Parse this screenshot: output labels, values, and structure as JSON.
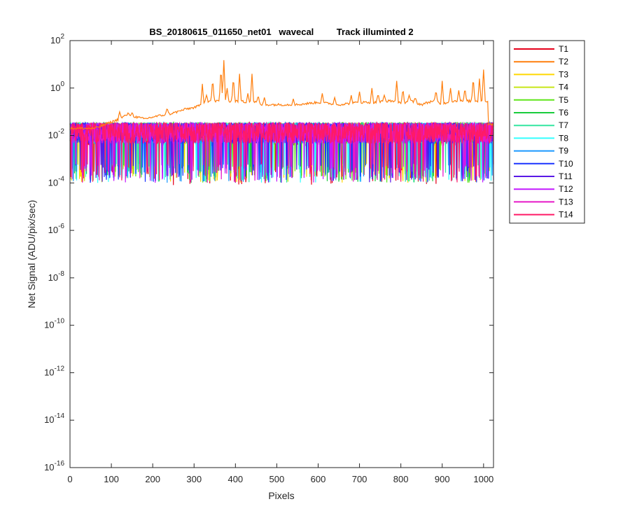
{
  "chart_data": {
    "type": "line",
    "title": "BS_20180615_011650_net01   wavecal         Track illuminted 2",
    "xlabel": "Pixels",
    "ylabel": "Net Signal (ADU/pix/sec)",
    "xlim": [
      0,
      1024
    ],
    "ylim": [
      1e-16,
      100
    ],
    "yscale": "log",
    "grid": false,
    "legend_position": "outside-top-right",
    "x_ticks": [
      0,
      100,
      200,
      300,
      400,
      500,
      600,
      700,
      800,
      900,
      1000
    ],
    "y_ticks": [
      {
        "value": 100,
        "base": "10",
        "exp": "2"
      },
      {
        "value": 1,
        "base": "10",
        "exp": "0"
      },
      {
        "value": 0.01,
        "base": "10",
        "exp": "-2"
      },
      {
        "value": 0.0001,
        "base": "10",
        "exp": "-4"
      },
      {
        "value": 1e-06,
        "base": "10",
        "exp": "-6"
      },
      {
        "value": 1e-08,
        "base": "10",
        "exp": "-8"
      },
      {
        "value": 1e-10,
        "base": "10",
        "exp": "-10"
      },
      {
        "value": 1e-12,
        "base": "10",
        "exp": "-12"
      },
      {
        "value": 1e-14,
        "base": "10",
        "exp": "-14"
      },
      {
        "value": 1e-16,
        "base": "10",
        "exp": "-16"
      }
    ],
    "series": [
      {
        "name": "T1",
        "color": "#e6001a",
        "baseline": 0.008,
        "noise_decades": 1.0
      },
      {
        "name": "T2",
        "color": "#ff7f0e",
        "baseline": 0.2,
        "noise_decades": 0.1,
        "x": [
          0,
          60,
          120,
          140,
          160,
          180,
          200,
          220,
          240,
          260,
          280,
          300,
          320,
          335,
          350,
          365,
          380,
          395,
          410,
          425,
          440,
          460,
          500,
          550,
          600,
          650,
          700,
          750,
          780,
          800,
          820,
          850,
          880,
          900,
          920,
          940,
          960,
          980,
          1000,
          1010,
          1024
        ],
        "y": [
          0.02,
          0.02,
          0.05,
          0.08,
          0.06,
          0.05,
          0.06,
          0.07,
          0.08,
          0.1,
          0.13,
          0.15,
          0.2,
          0.5,
          0.3,
          10,
          0.4,
          2,
          0.3,
          0.25,
          0.3,
          0.2,
          0.2,
          0.2,
          0.25,
          0.2,
          0.25,
          0.25,
          0.5,
          0.2,
          0.3,
          0.2,
          0.3,
          0.2,
          0.3,
          0.3,
          0.4,
          0.5,
          4,
          0.3,
          0.03
        ],
        "peaks": [
          {
            "x": 120,
            "y": 0.1
          },
          {
            "x": 150,
            "y": 0.09
          },
          {
            "x": 235,
            "y": 0.15
          },
          {
            "x": 320,
            "y": 1.5
          },
          {
            "x": 330,
            "y": 0.5
          },
          {
            "x": 345,
            "y": 2.5
          },
          {
            "x": 365,
            "y": 8
          },
          {
            "x": 372,
            "y": 15
          },
          {
            "x": 380,
            "y": 1.0
          },
          {
            "x": 395,
            "y": 3
          },
          {
            "x": 410,
            "y": 4
          },
          {
            "x": 430,
            "y": 0.6
          },
          {
            "x": 440,
            "y": 4
          },
          {
            "x": 455,
            "y": 0.5
          },
          {
            "x": 470,
            "y": 0.4
          },
          {
            "x": 540,
            "y": 0.35
          },
          {
            "x": 610,
            "y": 0.6
          },
          {
            "x": 640,
            "y": 0.4
          },
          {
            "x": 680,
            "y": 0.5
          },
          {
            "x": 700,
            "y": 0.7
          },
          {
            "x": 730,
            "y": 1.0
          },
          {
            "x": 745,
            "y": 0.6
          },
          {
            "x": 760,
            "y": 0.5
          },
          {
            "x": 790,
            "y": 2
          },
          {
            "x": 805,
            "y": 1.0
          },
          {
            "x": 820,
            "y": 0.5
          },
          {
            "x": 835,
            "y": 0.4
          },
          {
            "x": 885,
            "y": 0.8
          },
          {
            "x": 900,
            "y": 2.0
          },
          {
            "x": 920,
            "y": 1.0
          },
          {
            "x": 940,
            "y": 0.8
          },
          {
            "x": 955,
            "y": 1.0
          },
          {
            "x": 975,
            "y": 3
          },
          {
            "x": 990,
            "y": 2.5
          },
          {
            "x": 1000,
            "y": 6
          }
        ]
      },
      {
        "name": "T3",
        "color": "#ffd700",
        "baseline": 0.01,
        "noise_decades": 1.0
      },
      {
        "name": "T4",
        "color": "#c8e619",
        "baseline": 0.01,
        "noise_decades": 1.0
      },
      {
        "name": "T5",
        "color": "#5fe619",
        "baseline": 0.01,
        "noise_decades": 1.0
      },
      {
        "name": "T6",
        "color": "#19cc3c",
        "baseline": 0.01,
        "noise_decades": 1.0
      },
      {
        "name": "T7",
        "color": "#33e6a0",
        "baseline": 0.01,
        "noise_decades": 1.0
      },
      {
        "name": "T8",
        "color": "#33ffff",
        "baseline": 0.01,
        "noise_decades": 1.0
      },
      {
        "name": "T9",
        "color": "#1a99ff",
        "baseline": 0.01,
        "noise_decades": 1.0
      },
      {
        "name": "T10",
        "color": "#1a33ff",
        "baseline": 0.01,
        "noise_decades": 1.0
      },
      {
        "name": "T11",
        "color": "#5a19e6",
        "baseline": 0.01,
        "noise_decades": 1.0
      },
      {
        "name": "T12",
        "color": "#c319ff",
        "baseline": 0.01,
        "noise_decades": 1.0
      },
      {
        "name": "T13",
        "color": "#e619c8",
        "baseline": 0.01,
        "noise_decades": 1.0
      },
      {
        "name": "T14",
        "color": "#ff1a66",
        "baseline": 0.01,
        "noise_decades": 1.0
      }
    ]
  }
}
